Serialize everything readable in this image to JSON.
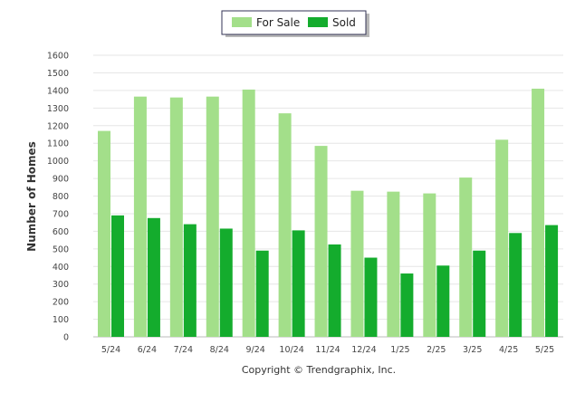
{
  "chart_data": {
    "type": "bar",
    "categories": [
      "5/24",
      "6/24",
      "7/24",
      "8/24",
      "9/24",
      "10/24",
      "11/24",
      "12/24",
      "1/25",
      "2/25",
      "3/25",
      "4/25",
      "5/25"
    ],
    "series": [
      {
        "name": "For Sale",
        "color": "#a3df8a",
        "values": [
          1170,
          1365,
          1360,
          1365,
          1405,
          1270,
          1085,
          830,
          825,
          815,
          905,
          1120,
          1410
        ]
      },
      {
        "name": "Sold",
        "color": "#14ac2d",
        "values": [
          690,
          675,
          640,
          615,
          490,
          605,
          525,
          450,
          360,
          405,
          490,
          590,
          635
        ]
      }
    ],
    "ylabel": "Number of Homes",
    "ylim": [
      0,
      1600
    ],
    "yticks": [
      0,
      100,
      200,
      300,
      400,
      500,
      600,
      700,
      800,
      900,
      1000,
      1100,
      1200,
      1300,
      1400,
      1500,
      1600
    ],
    "grid": true,
    "legend": "top-center"
  },
  "footer": {
    "copyright": "Copyright © Trendgraphix, Inc."
  }
}
